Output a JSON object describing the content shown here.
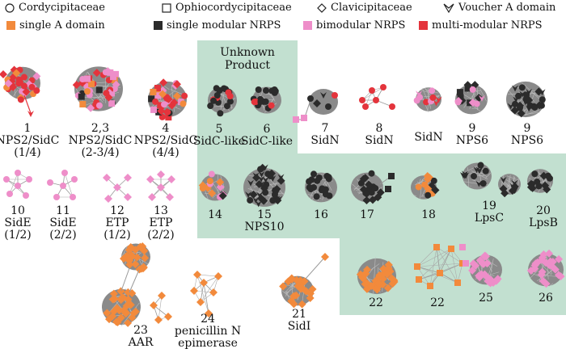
{
  "legend": {
    "shapes": [
      {
        "symbol": "circle-outline-icon",
        "label": "Cordycipitaceae"
      },
      {
        "symbol": "square-outline-icon",
        "label": "Ophiocordycipitaceae"
      },
      {
        "symbol": "diamond-outline-icon",
        "label": "Clavicipitaceae"
      },
      {
        "symbol": "arrowhead-outline-icon",
        "label": "Voucher A domain"
      }
    ],
    "colors": [
      {
        "color": "#f28a3c",
        "label": "single A domain"
      },
      {
        "color": "#2b2b2b",
        "label": "single modular NRPS"
      },
      {
        "color": "#ee8ec9",
        "label": "bimodular NRPS"
      },
      {
        "color": "#e4343c",
        "label": "multi-modular NRPS"
      }
    ]
  },
  "region_title": "Unknown\nProduct",
  "clusters": [
    {
      "id": "c1",
      "number": "1",
      "name": "NPS2/SidC",
      "sub": "(1/4)"
    },
    {
      "id": "c23",
      "number": "2,3",
      "name": "NPS2/SidC",
      "sub": "(2-3/4)"
    },
    {
      "id": "c4",
      "number": "4",
      "name": "NPS2/SidC",
      "sub": "(4/4)"
    },
    {
      "id": "c5",
      "number": "5",
      "name": "SidC-like",
      "sub": ""
    },
    {
      "id": "c6",
      "number": "6",
      "name": "SidC-like",
      "sub": ""
    },
    {
      "id": "c7",
      "number": "7",
      "name": "SidN",
      "sub": ""
    },
    {
      "id": "c8",
      "number": "8",
      "name": "SidN",
      "sub": ""
    },
    {
      "id": "cSidN",
      "number": "",
      "name": "SidN",
      "sub": ""
    },
    {
      "id": "c9a",
      "number": "9",
      "name": "NPS6",
      "sub": ""
    },
    {
      "id": "c9b",
      "number": "9",
      "name": "NPS6",
      "sub": ""
    },
    {
      "id": "c10",
      "number": "10",
      "name": "SidE",
      "sub": "(1/2)"
    },
    {
      "id": "c11",
      "number": "11",
      "name": "SidE",
      "sub": "(2/2)"
    },
    {
      "id": "c12",
      "number": "12",
      "name": "ETP",
      "sub": "(1/2)"
    },
    {
      "id": "c13",
      "number": "13",
      "name": "ETP",
      "sub": "(2/2)"
    },
    {
      "id": "c14",
      "number": "14",
      "name": "",
      "sub": ""
    },
    {
      "id": "c15",
      "number": "15",
      "name": "NPS10",
      "sub": ""
    },
    {
      "id": "c16",
      "number": "16",
      "name": "",
      "sub": ""
    },
    {
      "id": "c17",
      "number": "17",
      "name": "",
      "sub": ""
    },
    {
      "id": "c18",
      "number": "18",
      "name": "",
      "sub": ""
    },
    {
      "id": "c19",
      "number": "19",
      "name": "LpsC",
      "sub": ""
    },
    {
      "id": "c20",
      "number": "20",
      "name": "LpsB",
      "sub": ""
    },
    {
      "id": "c21",
      "number": "21",
      "name": "SidI",
      "sub": ""
    },
    {
      "id": "c22a",
      "number": "22",
      "name": "",
      "sub": ""
    },
    {
      "id": "c22b",
      "number": "22",
      "name": "",
      "sub": ""
    },
    {
      "id": "c23b",
      "number": "23",
      "name": "AAR",
      "sub": ""
    },
    {
      "id": "c24",
      "number": "24",
      "name": "penicillin N",
      "sub": "epimerase"
    },
    {
      "id": "c25",
      "number": "25",
      "name": "",
      "sub": ""
    },
    {
      "id": "c26",
      "number": "26",
      "name": "",
      "sub": ""
    }
  ]
}
